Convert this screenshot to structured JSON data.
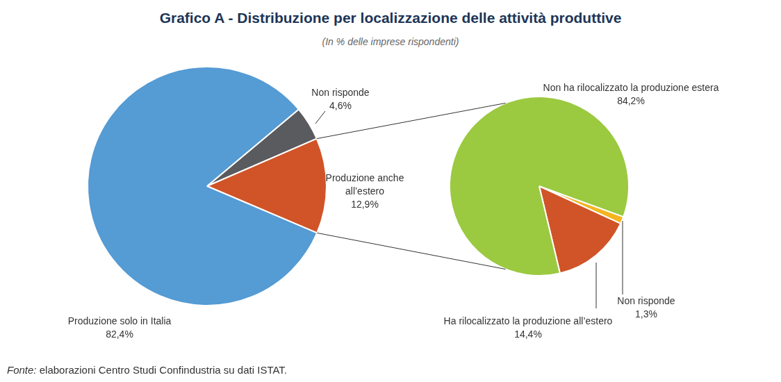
{
  "title": "Grafico A - Distribuzione per localizzazione delle attività produttive",
  "subtitle": "(In % delle imprese rispondenti)",
  "source": {
    "label": "Fonte:",
    "text": "elaborazioni Centro Studi Confindustria su dati ISTAT."
  },
  "chart_data": [
    {
      "type": "pie",
      "categories": [
        "Non risponde",
        "Produzione anche all’estero",
        "Produzione solo in Italia"
      ],
      "values": [
        4.6,
        12.9,
        82.4
      ],
      "value_labels": [
        "4,6%",
        "12,9%",
        "82,4%"
      ],
      "colors": [
        "#595b5e",
        "#d05428",
        "#559bd4"
      ],
      "data_labels": true
    },
    {
      "type": "pie",
      "categories": [
        "Non risponde",
        "Ha rilocalizzato la produzione all’estero",
        "Non ha rilocalizzato la produzione estera"
      ],
      "values": [
        1.3,
        14.4,
        84.2
      ],
      "value_labels": [
        "1,3%",
        "14,4%",
        "84,2%"
      ],
      "colors": [
        "#f5b520",
        "#d05428",
        "#9bc940"
      ],
      "data_labels": true
    }
  ]
}
